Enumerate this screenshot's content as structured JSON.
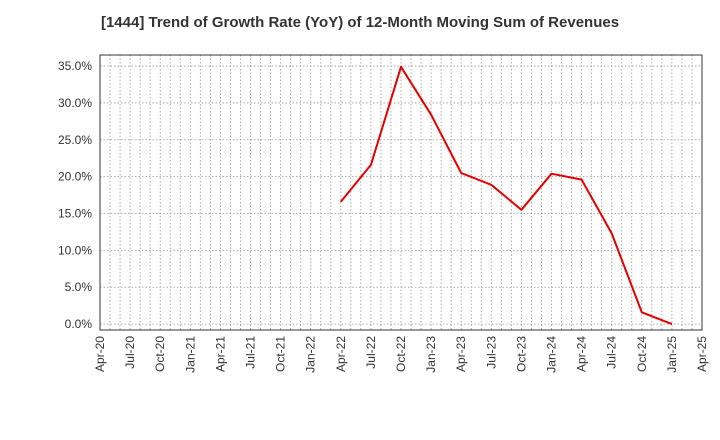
{
  "chart_data": {
    "type": "line",
    "title": "[1444]  Trend of Growth Rate (YoY) of 12-Month Moving Sum of Revenues",
    "xlabel": "",
    "ylabel": "",
    "x_tick_labels": [
      "Apr-20",
      "Jul-20",
      "Oct-20",
      "Jan-21",
      "Apr-21",
      "Jul-21",
      "Oct-21",
      "Jan-22",
      "Apr-22",
      "Jul-22",
      "Oct-22",
      "Jan-23",
      "Apr-23",
      "Jul-23",
      "Oct-23",
      "Jan-24",
      "Apr-24",
      "Jul-24",
      "Oct-24",
      "Jan-25",
      "Apr-25"
    ],
    "y_tick_values": [
      0,
      5,
      10,
      15,
      20,
      25,
      30,
      35
    ],
    "y_tick_labels": [
      "0.0%",
      "5.0%",
      "10.0%",
      "15.0%",
      "20.0%",
      "25.0%",
      "30.0%",
      "35.0%"
    ],
    "ylim": [
      -0.8,
      36.5
    ],
    "grid": true,
    "series": [
      {
        "color": "#e60000",
        "x": [
          "Apr-22",
          "Jul-22",
          "Oct-22",
          "Jan-23",
          "Apr-23",
          "Jul-23",
          "Oct-23",
          "Jan-24",
          "Apr-24",
          "Jul-24",
          "Oct-24",
          "Jan-25"
        ],
        "values": [
          16.6,
          21.6,
          34.9,
          28.4,
          20.5,
          18.9,
          15.5,
          20.4,
          19.6,
          12.3,
          1.6,
          0.0
        ]
      }
    ]
  }
}
